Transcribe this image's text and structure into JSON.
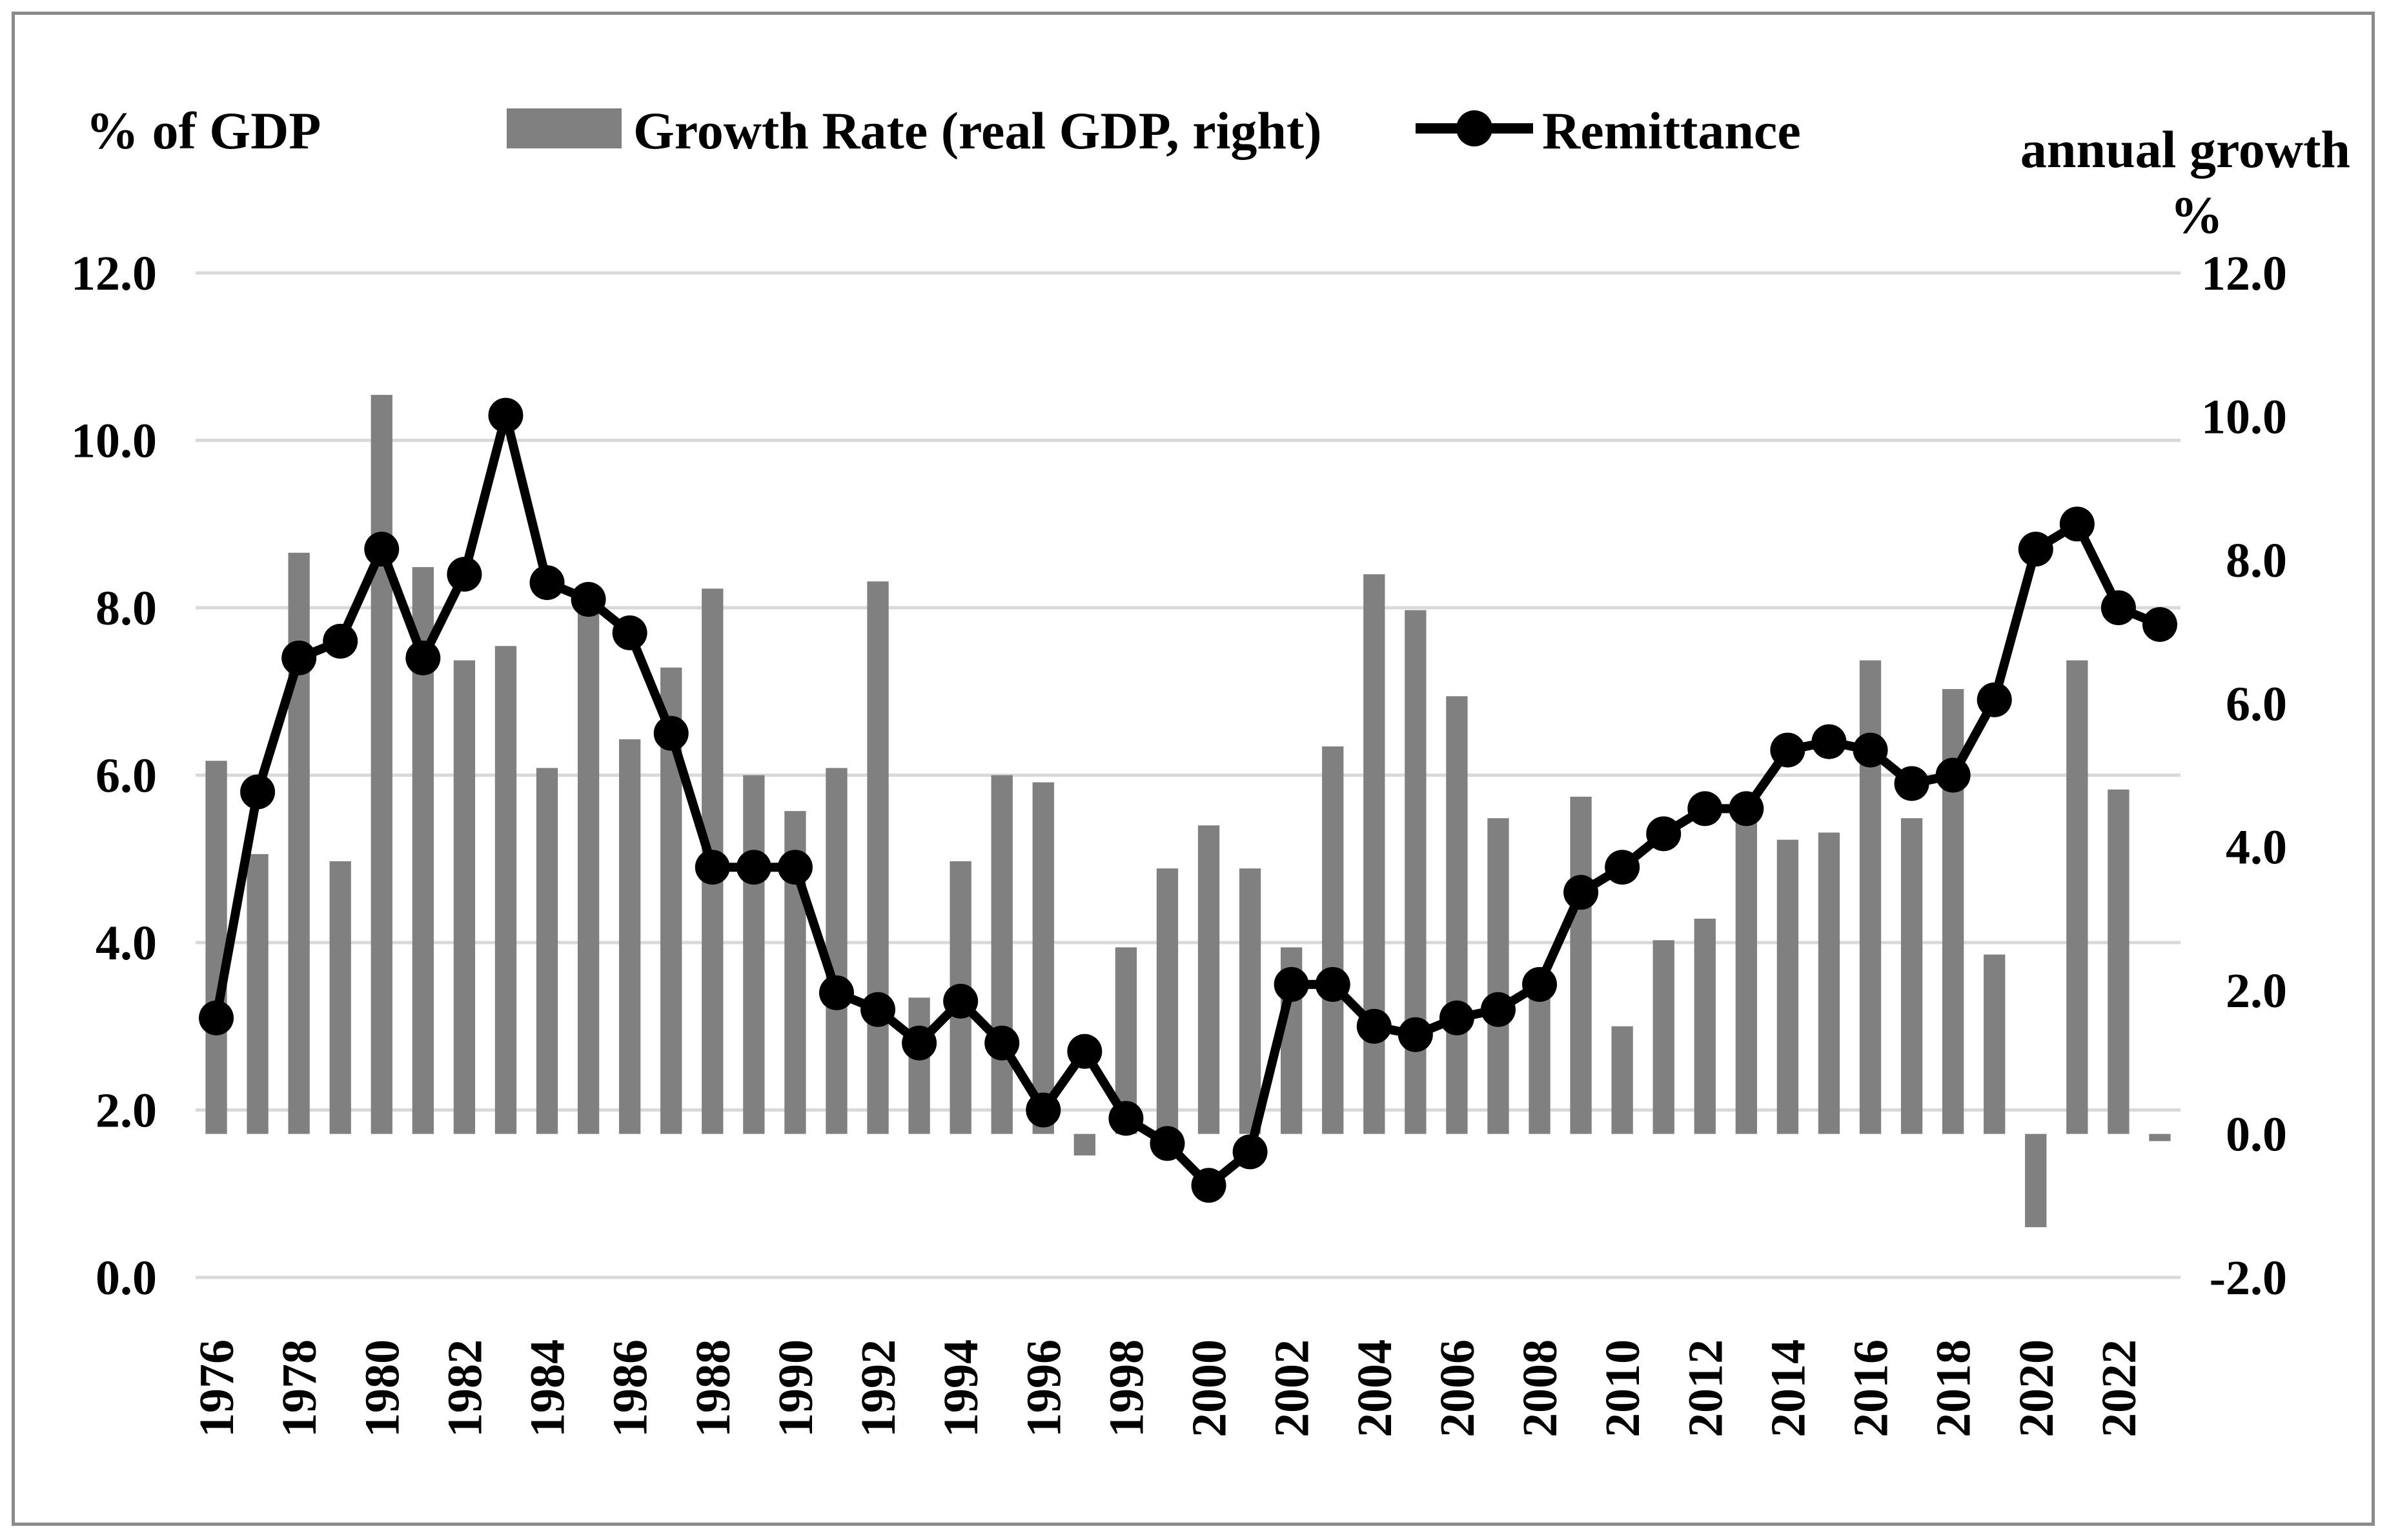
{
  "chart_data": {
    "type": "bar+line",
    "title": "",
    "left_axis_label": "% of GDP",
    "right_axis_label_line1": "annual growth",
    "right_axis_label_line2": "%",
    "left_ylim": [
      0,
      12
    ],
    "right_ylim": [
      -2,
      12
    ],
    "left_ticks": [
      "0.0",
      "2.0",
      "4.0",
      "6.0",
      "8.0",
      "10.0",
      "12.0"
    ],
    "right_ticks": [
      "-2.0",
      "0.0",
      "2.0",
      "4.0",
      "6.0",
      "8.0",
      "10.0",
      "12.0"
    ],
    "grid": true,
    "legend_position": "top-center",
    "x_tick_labels": [
      "1976",
      "1978",
      "1980",
      "1982",
      "1984",
      "1986",
      "1988",
      "1990",
      "1992",
      "1994",
      "1996",
      "1998",
      "2000",
      "2002",
      "2004",
      "2006",
      "2008",
      "2010",
      "2012",
      "2014",
      "2016",
      "2018",
      "2020",
      "2022"
    ],
    "x": [
      1976,
      1977,
      1978,
      1979,
      1980,
      1981,
      1982,
      1983,
      1984,
      1985,
      1986,
      1987,
      1988,
      1989,
      1990,
      1991,
      1992,
      1993,
      1994,
      1995,
      1996,
      1997,
      1998,
      1999,
      2000,
      2001,
      2002,
      2003,
      2004,
      2005,
      2006,
      2007,
      2008,
      2009,
      2010,
      2011,
      2012,
      2013,
      2014,
      2015,
      2016,
      2017,
      2018,
      2019,
      2020,
      2021,
      2022,
      2023
    ],
    "series": [
      {
        "name": "Growth Rate (real GDP, right)",
        "type": "bar",
        "axis": "right",
        "color": "#808080",
        "values": [
          5.2,
          3.9,
          8.1,
          3.8,
          10.3,
          7.9,
          6.6,
          6.8,
          5.1,
          7.4,
          5.5,
          6.5,
          7.6,
          5.0,
          4.5,
          5.1,
          7.7,
          1.9,
          3.8,
          5.0,
          4.9,
          -0.3,
          2.6,
          3.7,
          4.3,
          3.7,
          2.6,
          5.4,
          7.8,
          7.3,
          6.1,
          4.4,
          2.0,
          4.7,
          1.5,
          2.7,
          3.0,
          4.5,
          4.1,
          4.2,
          6.6,
          4.4,
          6.2,
          2.5,
          -1.3,
          6.6,
          4.8,
          -0.1
        ]
      },
      {
        "name": "Remittance",
        "type": "line",
        "axis": "left",
        "color": "#000000",
        "values": [
          3.1,
          5.8,
          7.4,
          7.6,
          8.7,
          7.4,
          8.4,
          10.3,
          8.3,
          8.1,
          7.7,
          6.5,
          4.9,
          4.9,
          4.9,
          3.4,
          3.2,
          2.8,
          3.3,
          2.8,
          2.0,
          2.7,
          1.9,
          1.6,
          1.1,
          1.5,
          3.5,
          3.5,
          3.0,
          2.9,
          3.1,
          3.2,
          3.5,
          4.6,
          4.9,
          5.3,
          5.6,
          5.6,
          6.3,
          6.4,
          6.3,
          5.9,
          6.0,
          6.9,
          8.7,
          9.0,
          8.0,
          7.8
        ]
      }
    ]
  }
}
